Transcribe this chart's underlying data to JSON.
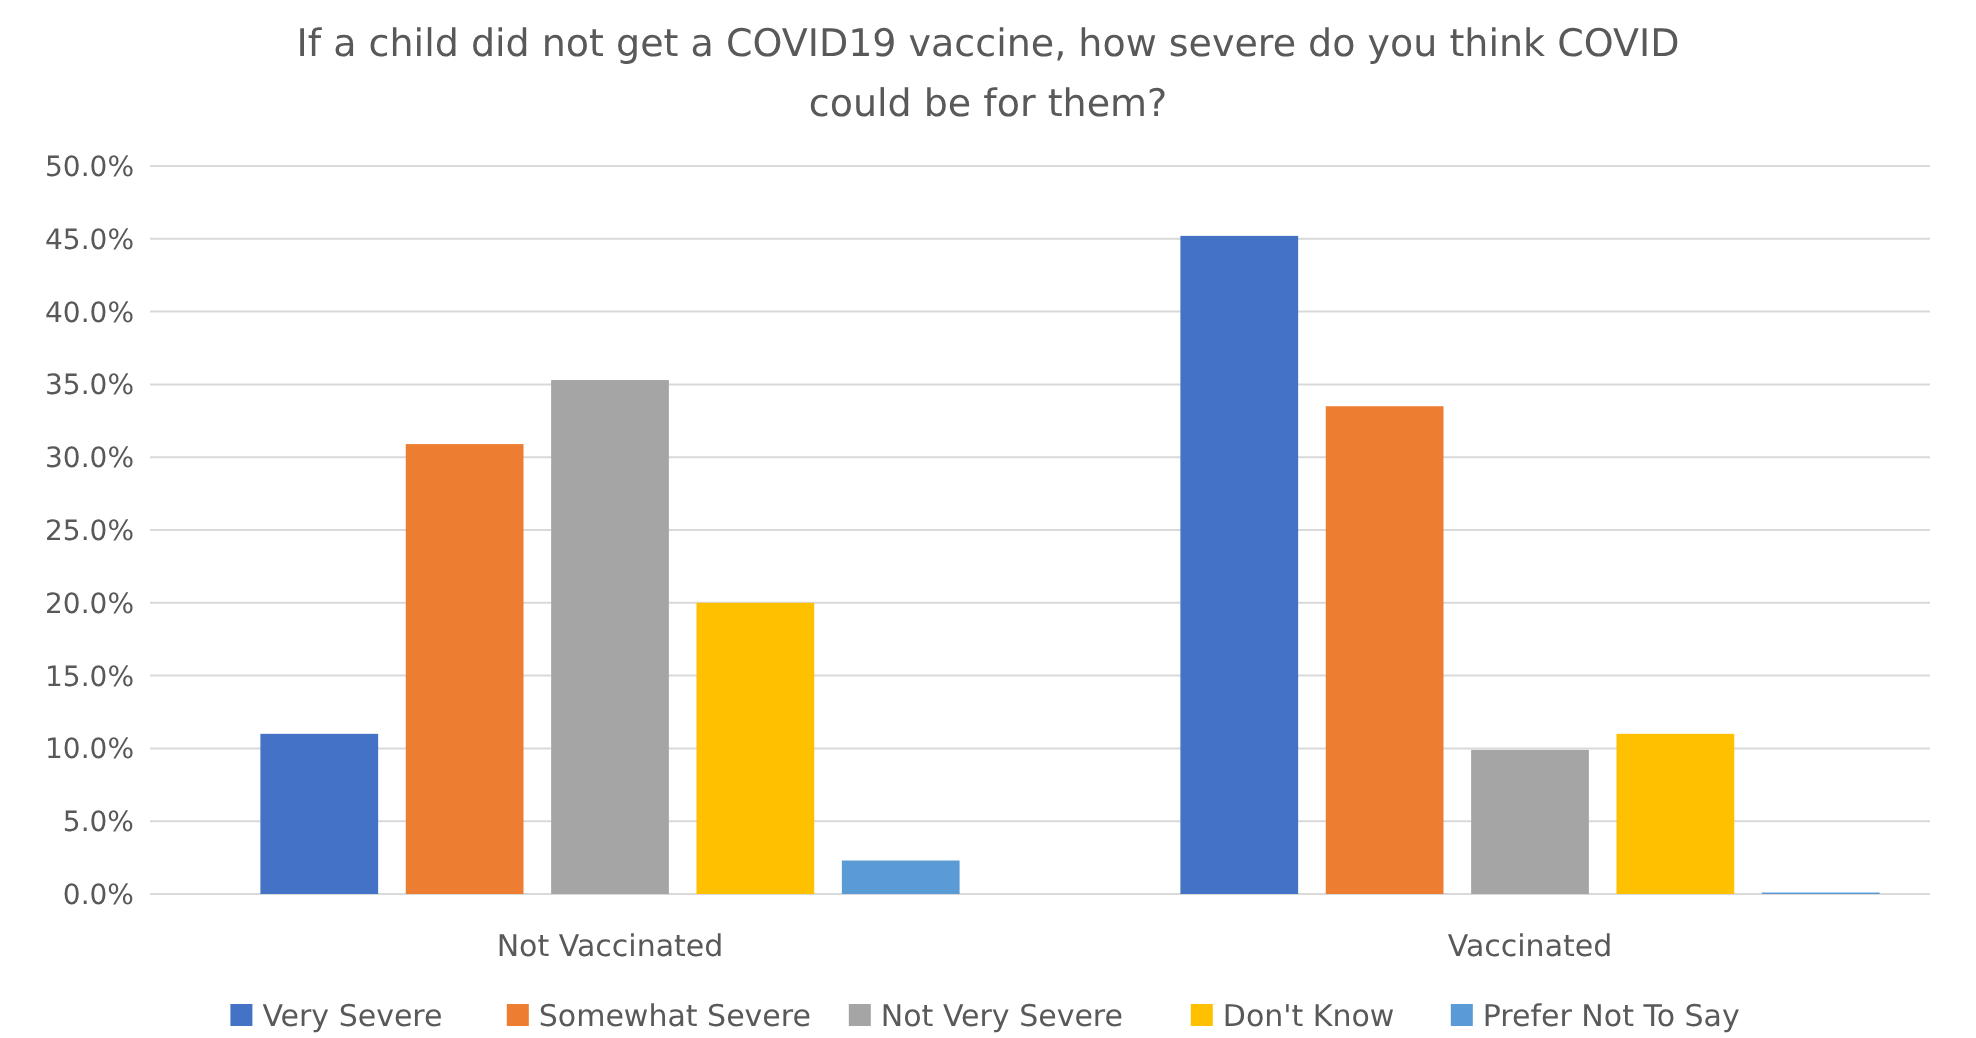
{
  "chart_data": {
    "type": "bar",
    "title": "If a child did not get a COVID19 vaccine, how severe do you think COVID could be for them?",
    "categories": [
      "Not Vaccinated",
      "Vaccinated"
    ],
    "series": [
      {
        "name": "Very Severe",
        "color": "#4472c4",
        "values": [
          11.0,
          45.2
        ]
      },
      {
        "name": "Somewhat Severe",
        "color": "#ed7d31",
        "values": [
          30.9,
          33.5
        ]
      },
      {
        "name": "Not Very Severe",
        "color": "#a5a5a5",
        "values": [
          35.3,
          9.9
        ]
      },
      {
        "name": "Don't Know",
        "color": "#ffc000",
        "values": [
          20.0,
          11.0
        ]
      },
      {
        "name": "Prefer Not To Say",
        "color": "#5b9bd5",
        "values": [
          2.3,
          0.1
        ]
      }
    ],
    "ylim": [
      0,
      50
    ],
    "yticks": [
      {
        "value": 0,
        "label": "0.0%"
      },
      {
        "value": 5,
        "label": "5.0%"
      },
      {
        "value": 10,
        "label": "10.0%"
      },
      {
        "value": 15,
        "label": "15.0%"
      },
      {
        "value": 20,
        "label": "20.0%"
      },
      {
        "value": 25,
        "label": "25.0%"
      },
      {
        "value": 30,
        "label": "30.0%"
      },
      {
        "value": 35,
        "label": "35.0%"
      },
      {
        "value": 40,
        "label": "40.0%"
      },
      {
        "value": 45,
        "label": "45.0%"
      },
      {
        "value": 50,
        "label": "50.0%"
      }
    ],
    "grid": "y",
    "legend": "bottom"
  }
}
